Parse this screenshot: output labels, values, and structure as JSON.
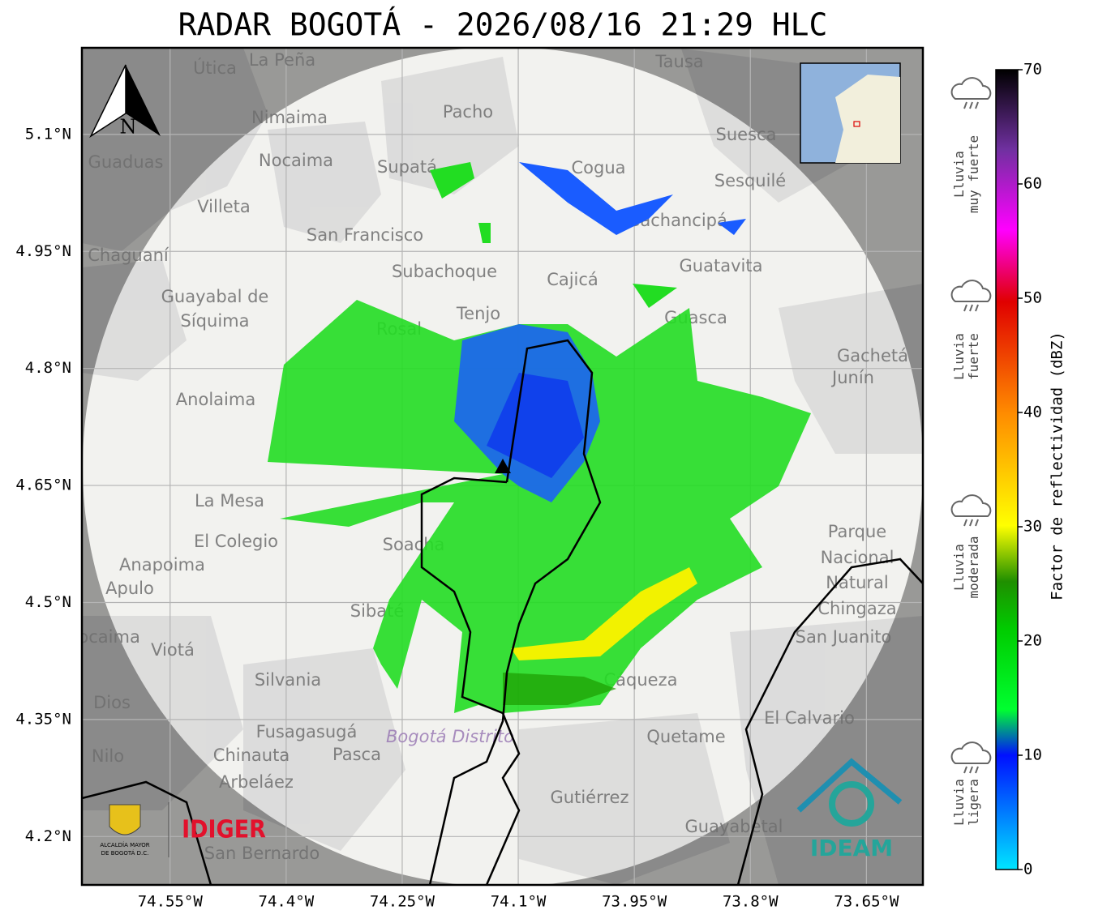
{
  "title": "RADAR BOGOTÁ - 2026/08/16 21:29 HLC",
  "map": {
    "lon_range": [
      -74.664,
      -73.577
    ],
    "lat_range": [
      4.138,
      5.211
    ],
    "lat_ticks": [
      {
        "value": 5.1,
        "label": "5.1°N"
      },
      {
        "value": 4.95,
        "label": "4.95°N"
      },
      {
        "value": 4.8,
        "label": "4.8°N"
      },
      {
        "value": 4.65,
        "label": "4.65°N"
      },
      {
        "value": 4.5,
        "label": "4.5°N"
      },
      {
        "value": 4.35,
        "label": "4.35°N"
      },
      {
        "value": 4.2,
        "label": "4.2°N"
      }
    ],
    "lon_ticks": [
      {
        "value": -74.55,
        "label": "74.55°W"
      },
      {
        "value": -74.4,
        "label": "74.4°W"
      },
      {
        "value": -74.25,
        "label": "74.25°W"
      },
      {
        "value": -74.1,
        "label": "74.1°W"
      },
      {
        "value": -73.95,
        "label": "73.95°W"
      },
      {
        "value": -73.8,
        "label": "73.8°W"
      },
      {
        "value": -73.65,
        "label": "73.65°W"
      }
    ],
    "north_label": "N",
    "district_label": "Bogotá Distrito",
    "places": [
      "La Peña",
      "Útica",
      "Tausa",
      "Pacho",
      "Nimaima",
      "Suesca",
      "Guaduas",
      "Nocaima",
      "Supatá",
      "Cogua",
      "Sesquilé",
      "Villeta",
      "Gachancipá",
      "San Francisco",
      "Chaguaní",
      "Guatavita",
      "Subachoque",
      "Cajicá",
      "Guayabal de",
      "Síquima",
      "Tenjo",
      "Guasca",
      "Rosal",
      "Gachetá",
      "Junín",
      "Anolaima",
      "La Mesa",
      "El Colegio",
      "Soacha",
      "Parque",
      "Nacional",
      "Natural",
      "Chingaza",
      "Anapoima",
      "Apulo",
      "Sibaté",
      "San Juanito",
      "Tocaima",
      "Viotá",
      "Silvania",
      "Cáqueza",
      "Dios",
      "El Calvario",
      "Fusagasugá",
      "Quetame",
      "Nilo",
      "Chinauta",
      "Pasca",
      "Arbeláez",
      "Gutiérrez",
      "Guayabetal",
      "San Bernardo"
    ]
  },
  "colorbar": {
    "label": "Factor de reflectividad (dBZ)",
    "range": [
      0,
      70
    ],
    "ticks": [
      0,
      10,
      20,
      30,
      40,
      50,
      60,
      70
    ],
    "categories": [
      [
        "Lluvia",
        "muy fuerte"
      ],
      [
        "Lluvia",
        "fuerte"
      ],
      [
        "Lluvia",
        "moderada"
      ],
      [
        "Lluvia",
        "ligera"
      ]
    ]
  },
  "logos": {
    "alcaldia": [
      "ALCALDÍA MAYOR",
      "DE BOGOTÁ D.C."
    ],
    "idiger": "IDIGER",
    "ideam": "IDEAM"
  }
}
